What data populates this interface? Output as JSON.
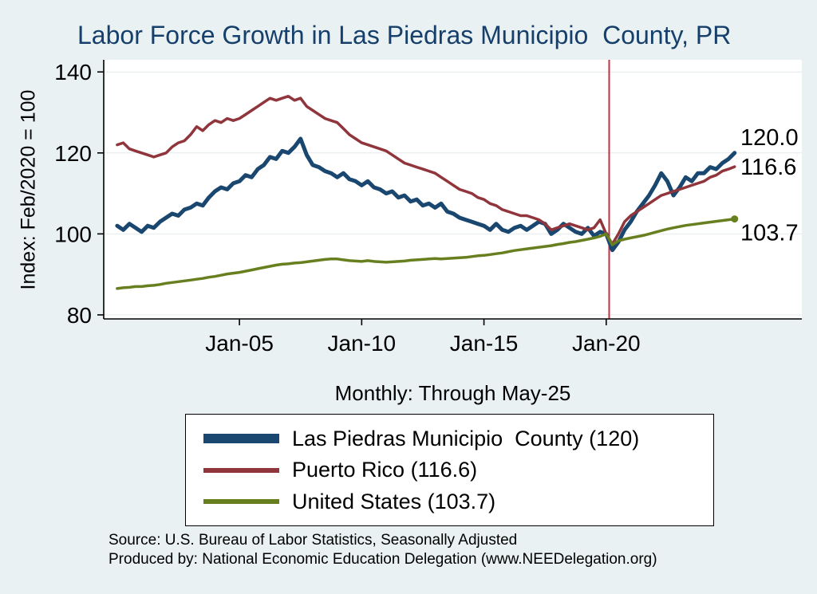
{
  "title": "Labor Force Growth in Las Piedras Municipio  County, PR",
  "axes": {
    "y_label": "Index: Feb/2020 = 100",
    "x_subtitle": "Monthly: Through May-25"
  },
  "colors": {
    "background": "#e9f1f3",
    "plot_background": "#ffffff",
    "title": "#16406b",
    "navy": "#1a476f",
    "maroon": "#90353b",
    "olive": "#687f1f",
    "reference_line": "#c0323f"
  },
  "legend": {
    "items": [
      {
        "label": "Las Piedras Municipio  County (120)",
        "color": "#1a476f"
      },
      {
        "label": "Puerto Rico (116.6)",
        "color": "#90353b"
      },
      {
        "label": "United States (103.7)",
        "color": "#687f1f"
      }
    ]
  },
  "source": {
    "line1": "Source: U.S. Bureau of Labor Statistics, Seasonally Adjusted",
    "line2": "Produced by: National Economic Education Delegation (www.NEEDelegation.org)"
  },
  "chart_data": {
    "type": "line",
    "title": "Labor Force Growth in Las Piedras Municipio  County, PR",
    "xlabel": "Monthly: Through May-25",
    "ylabel": "Index: Feb/2020 = 100",
    "xlim": [
      1999.45,
      2028.0
    ],
    "ylim": [
      79,
      143
    ],
    "y_ticks": [
      80,
      100,
      120,
      140
    ],
    "x_ticks": [
      {
        "value": 2005,
        "label": "Jan-05"
      },
      {
        "value": 2010,
        "label": "Jan-10"
      },
      {
        "value": 2015,
        "label": "Jan-15"
      },
      {
        "value": 2020,
        "label": "Jan-20"
      }
    ],
    "x_unit": "decimal-year, monthly series sampled quarterly",
    "x_start": 2000.0,
    "x_step": 0.25,
    "vline": {
      "x": 2020.12,
      "color": "#c0323f"
    },
    "end_labels": [
      {
        "text": "120.0",
        "value": 120.0,
        "dy": -20
      },
      {
        "text": "116.6",
        "value": 116.6,
        "dy": 0
      },
      {
        "text": "103.7",
        "value": 103.7,
        "dy": 17
      }
    ],
    "series": [
      {
        "id": "las-piedras",
        "name": "Las Piedras Municipio  County (120)",
        "color": "#1a476f",
        "width": 5,
        "end_marker": false,
        "values": [
          102,
          101,
          102.5,
          101.5,
          100.5,
          102,
          101.5,
          103,
          104,
          105,
          104.5,
          106,
          106.5,
          107.5,
          107,
          109,
          110.5,
          111.5,
          111,
          112.5,
          113,
          114.5,
          114,
          116,
          117,
          119,
          118.5,
          120.5,
          120,
          121.5,
          123.5,
          119.5,
          117,
          116.5,
          115.5,
          115,
          114,
          115,
          113.5,
          113,
          112,
          113,
          111.5,
          111,
          110,
          110.5,
          109,
          109.5,
          108,
          108.5,
          107,
          107.5,
          106.5,
          107.5,
          105.5,
          105,
          104,
          103.5,
          103,
          102.5,
          102,
          101,
          102.5,
          101,
          100.5,
          101.5,
          102,
          101,
          102,
          103,
          102.5,
          100,
          101,
          102.5,
          101.5,
          100.5,
          100,
          101.5,
          99.5,
          100.5,
          100,
          96,
          98,
          101,
          103,
          105.5,
          107.5,
          109.5,
          112,
          115,
          113,
          109.5,
          111.5,
          114,
          113,
          115,
          115,
          116.5,
          116,
          117.5,
          118.5,
          120
        ]
      },
      {
        "id": "puerto-rico",
        "name": "Puerto Rico (116.6)",
        "color": "#90353b",
        "width": 3.5,
        "end_marker": false,
        "values": [
          122,
          122.5,
          121,
          120.5,
          120,
          119.5,
          119,
          119.5,
          120,
          121.5,
          122.5,
          123,
          124.5,
          126.5,
          125.5,
          127,
          128,
          127.5,
          128.5,
          128,
          128.5,
          129.5,
          130.5,
          131.5,
          132.5,
          133.5,
          133,
          133.5,
          134,
          133,
          133.5,
          131.5,
          130.5,
          129.5,
          128.5,
          128,
          127.5,
          126,
          124.5,
          123.5,
          122.5,
          122,
          121.5,
          121,
          120.5,
          119.5,
          118.5,
          117.5,
          117,
          116.5,
          116,
          115.5,
          115,
          114,
          113,
          112,
          111,
          110.5,
          110,
          109,
          108.5,
          107.5,
          107,
          106,
          105.5,
          105,
          104.5,
          104.5,
          104,
          103.5,
          102.5,
          101,
          101.5,
          102,
          102.5,
          102,
          101.5,
          101,
          101.5,
          103.5,
          100,
          97.5,
          100,
          103,
          104.5,
          105.5,
          106.5,
          107.5,
          108.5,
          109.5,
          110,
          110.5,
          111,
          111.5,
          112,
          112.5,
          113,
          114,
          114.5,
          115.5,
          116,
          116.6
        ]
      },
      {
        "id": "united-states",
        "name": "United States (103.7)",
        "color": "#687f1f",
        "width": 3.5,
        "end_marker": true,
        "values": [
          86.5,
          86.7,
          86.8,
          87,
          87,
          87.2,
          87.3,
          87.5,
          87.8,
          88,
          88.2,
          88.4,
          88.6,
          88.8,
          89,
          89.3,
          89.5,
          89.8,
          90.1,
          90.3,
          90.5,
          90.8,
          91.1,
          91.4,
          91.7,
          92,
          92.3,
          92.5,
          92.6,
          92.8,
          92.9,
          93.1,
          93.3,
          93.5,
          93.7,
          93.8,
          93.8,
          93.6,
          93.4,
          93.3,
          93.2,
          93.4,
          93.2,
          93.1,
          93,
          93.1,
          93.2,
          93.3,
          93.5,
          93.6,
          93.7,
          93.8,
          93.9,
          93.8,
          93.9,
          94,
          94.1,
          94.2,
          94.4,
          94.6,
          94.7,
          94.9,
          95.1,
          95.3,
          95.6,
          95.9,
          96.1,
          96.3,
          96.5,
          96.7,
          96.9,
          97.1,
          97.4,
          97.6,
          97.9,
          98.1,
          98.4,
          98.7,
          99,
          99.4,
          100,
          97.3,
          98.3,
          98.7,
          99,
          99.3,
          99.6,
          100,
          100.4,
          100.8,
          101.2,
          101.5,
          101.8,
          102.1,
          102.3,
          102.5,
          102.7,
          102.9,
          103.1,
          103.3,
          103.5,
          103.7
        ]
      }
    ]
  }
}
